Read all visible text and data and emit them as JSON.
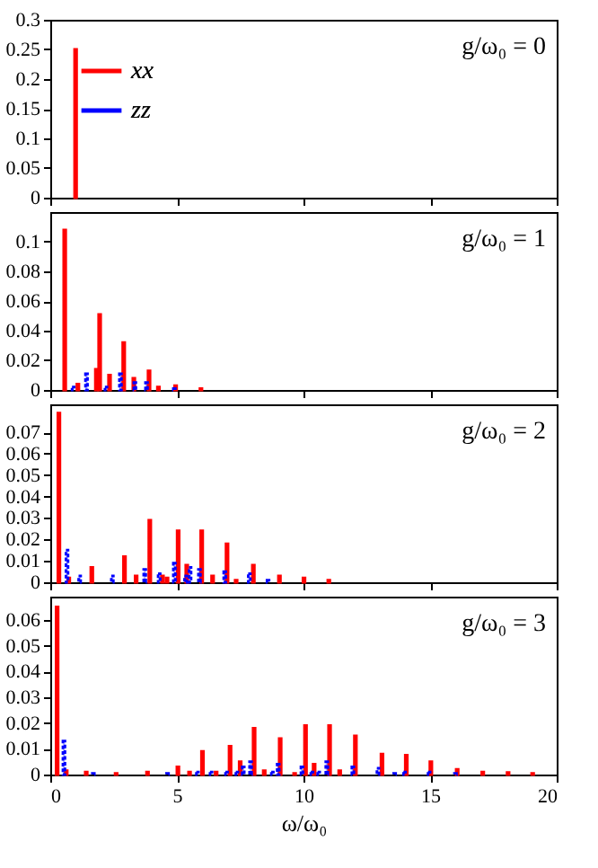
{
  "chart_data": [
    {
      "type": "bar",
      "annotations": [
        "g/ω₀ = 0"
      ],
      "xlim": [
        0,
        20
      ],
      "xticks": [
        0,
        5,
        10,
        15,
        20
      ],
      "ylim": [
        0,
        0.3
      ],
      "yticks": [
        0,
        0.05,
        0.1,
        0.15,
        0.2,
        0.25,
        0.3
      ],
      "tick_labels": "y",
      "legend": "top left",
      "grid": false,
      "series": [
        {
          "name": "xx",
          "color": "#ff0000",
          "line_style": "solid",
          "x": [
            1
          ],
          "values": [
            0.25
          ]
        },
        {
          "name": "zz",
          "color": "#0000ff",
          "line_style": "dotted"
        }
      ]
    },
    {
      "type": "bar",
      "annotations": [
        "g/ω₀ = 1"
      ],
      "xlim": [
        0,
        20
      ],
      "xticks": [
        0,
        5,
        10,
        15,
        20
      ],
      "ylim": [
        0,
        0.12
      ],
      "yticks": [
        0,
        0.02,
        0.04,
        0.06,
        0.08,
        0.1
      ],
      "tick_labels": "y",
      "grid": false,
      "series": [
        {
          "color": "#ff0000",
          "line_style": "solid",
          "x": [
            0.57,
            1.09,
            1.82,
            1.95,
            2.34,
            2.9,
            3.3,
            3.9,
            4.27,
            4.95,
            5.95
          ],
          "values": [
            0.108,
            0.004,
            0.014,
            0.051,
            0.01,
            0.032,
            0.008,
            0.013,
            0.002,
            0.003,
            0.001
          ]
        },
        {
          "color": "#0000ff",
          "line_style": "dotted",
          "x": [
            0.9,
            1.43,
            2.2,
            2.77,
            3.34,
            3.8,
            4.9
          ],
          "values": [
            0.002,
            0.011,
            0.002,
            0.011,
            0.005,
            0.005,
            0.001
          ]
        }
      ]
    },
    {
      "type": "bar",
      "annotations": [
        "g/ω₀ = 2"
      ],
      "xlim": [
        0,
        20
      ],
      "xticks": [
        0,
        5,
        10,
        15,
        20
      ],
      "ylim": [
        0,
        0.083
      ],
      "yticks": [
        0,
        0.01,
        0.02,
        0.03,
        0.04,
        0.05,
        0.06,
        0.07
      ],
      "tick_labels": "y",
      "grid": false,
      "series": [
        {
          "color": "#ff0000",
          "line_style": "solid",
          "x": [
            0.34,
            0.73,
            1.64,
            2.93,
            3.39,
            3.93,
            4.43,
            4.61,
            5.05,
            5.39,
            5.98,
            6.41,
            6.98,
            7.34,
            8.02,
            9.05,
            10.02,
            11.0
          ],
          "values": [
            0.079,
            0.002,
            0.007,
            0.012,
            0.003,
            0.029,
            0.003,
            0.002,
            0.024,
            0.008,
            0.024,
            0.003,
            0.018,
            0.001,
            0.008,
            0.003,
            0.002,
            0.001
          ]
        },
        {
          "color": "#0000ff",
          "line_style": "dotted",
          "x": [
            0.66,
            1.16,
            2.45,
            3.73,
            4.3,
            4.9,
            5.34,
            5.52,
            5.89,
            6.89,
            7.86,
            8.6
          ],
          "values": [
            0.015,
            0.003,
            0.003,
            0.006,
            0.004,
            0.009,
            0.003,
            0.007,
            0.006,
            0.005,
            0.004,
            0.001
          ]
        }
      ]
    },
    {
      "type": "bar",
      "annotations": [
        "g/ω₀ = 3"
      ],
      "xlabel": "ω/ω₀",
      "xlim": [
        0,
        20
      ],
      "xticks": [
        0,
        5,
        10,
        15,
        20
      ],
      "ylim": [
        0,
        0.069
      ],
      "yticks": [
        0,
        0.01,
        0.02,
        0.03,
        0.04,
        0.05,
        0.06
      ],
      "grid": false,
      "series": [
        {
          "color": "#ff0000",
          "line_style": "solid",
          "x": [
            0.27,
            0.63,
            1.42,
            2.6,
            3.84,
            5.04,
            5.5,
            6.01,
            6.55,
            7.1,
            7.5,
            8.05,
            8.45,
            9.08,
            9.65,
            10.08,
            10.42,
            11.03,
            11.43,
            12.05,
            13.1,
            14.06,
            15.03,
            16.07,
            17.08,
            18.08,
            19.05
          ],
          "values": [
            0.065,
            0.0015,
            0.001,
            0.0005,
            0.001,
            0.003,
            0.001,
            0.009,
            0.001,
            0.011,
            0.005,
            0.018,
            0.0015,
            0.014,
            0.0005,
            0.019,
            0.004,
            0.019,
            0.0015,
            0.015,
            0.008,
            0.0075,
            0.005,
            0.002,
            0.001,
            0.0008,
            0.0005
          ]
        },
        {
          "color": "#0000ff",
          "line_style": "dotted",
          "x": [
            0.54,
            1.7,
            4.63,
            5.81,
            6.35,
            6.96,
            7.37,
            7.62,
            7.91,
            8.77,
            9.0,
            9.94,
            10.33,
            10.6,
            10.92,
            11.95,
            12.94,
            13.6,
            13.99,
            14.96,
            16.0
          ],
          "values": [
            0.013,
            0.0005,
            0.0005,
            0.001,
            0.001,
            0.001,
            0.001,
            0.003,
            0.005,
            0.001,
            0.004,
            0.003,
            0.001,
            0.001,
            0.005,
            0.003,
            0.0025,
            0.0005,
            0.001,
            0.001,
            0.0005
          ]
        }
      ]
    }
  ]
}
